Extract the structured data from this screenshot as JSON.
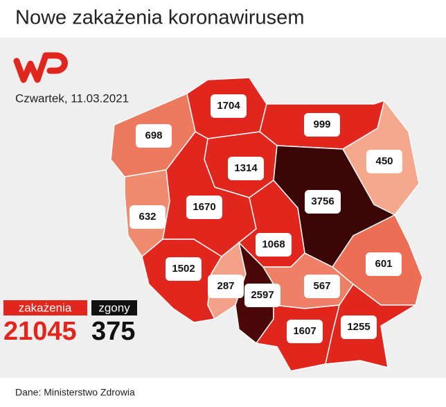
{
  "header": {
    "title": "Nowe zakażenia koronawirusem",
    "date": "Czwartek, 11.03.2021"
  },
  "regions": [
    {
      "value": 698,
      "color": "#ec7a5e"
    },
    {
      "value": 1704,
      "color": "#e1261e"
    },
    {
      "value": 999,
      "color": "#e1261e"
    },
    {
      "value": 450,
      "color": "#f5a88c"
    },
    {
      "value": 1314,
      "color": "#e1261e"
    },
    {
      "value": 3756,
      "color": "#3c0606"
    },
    {
      "value": 632,
      "color": "#ef8b6f"
    },
    {
      "value": 1670,
      "color": "#e1261e"
    },
    {
      "value": 1068,
      "color": "#e1261e"
    },
    {
      "value": 601,
      "color": "#ec6f55"
    },
    {
      "value": 1502,
      "color": "#e1261e"
    },
    {
      "value": 287,
      "color": "#f3a289"
    },
    {
      "value": 2597,
      "color": "#4a0808"
    },
    {
      "value": 567,
      "color": "#ef8068"
    },
    {
      "value": 1607,
      "color": "#e1261e"
    },
    {
      "value": 1255,
      "color": "#e1261e"
    }
  ],
  "totals": {
    "cases_label": "zakażenia",
    "cases": 21045,
    "deaths_label": "zgony",
    "deaths": 375
  },
  "footer": {
    "source": "Dane: Ministerstwo Zdrowia"
  }
}
